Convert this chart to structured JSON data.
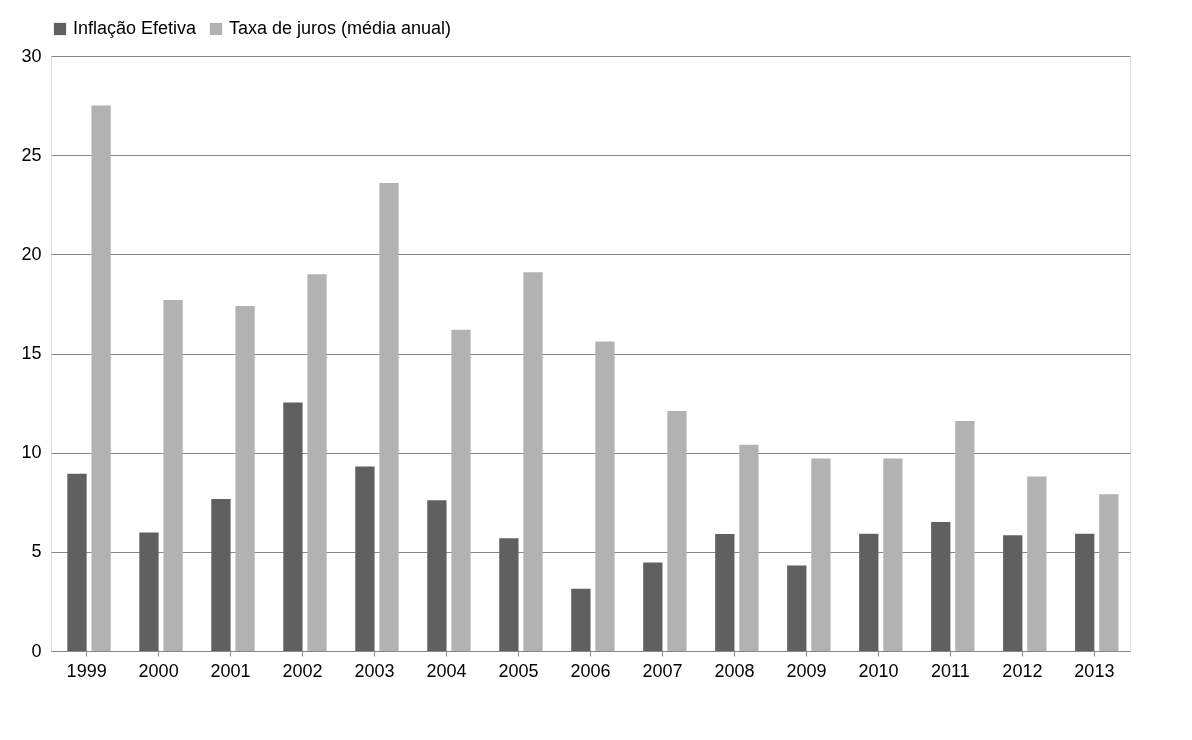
{
  "chart_data": {
    "type": "bar",
    "categories": [
      "1999",
      "2000",
      "2001",
      "2002",
      "2003",
      "2004",
      "2005",
      "2006",
      "2007",
      "2008",
      "2009",
      "2010",
      "2011",
      "2012",
      "2013"
    ],
    "series": [
      {
        "name": "Inflação Efetiva",
        "color": "#606060",
        "values": [
          8.94,
          5.97,
          7.67,
          12.53,
          9.3,
          7.6,
          5.69,
          3.14,
          4.46,
          5.9,
          4.31,
          5.91,
          6.5,
          5.84,
          5.91
        ]
      },
      {
        "name": "Taxa de juros (média anual)",
        "color": "#b2b2b2",
        "values": [
          27.5,
          17.7,
          17.4,
          19.0,
          23.6,
          16.2,
          19.1,
          15.6,
          12.1,
          10.4,
          9.7,
          9.7,
          11.6,
          8.8,
          7.9
        ]
      }
    ],
    "ylim": [
      0,
      30
    ],
    "yticks": [
      0,
      5,
      10,
      15,
      20,
      25,
      30
    ],
    "grid": "y",
    "legend": "top"
  }
}
